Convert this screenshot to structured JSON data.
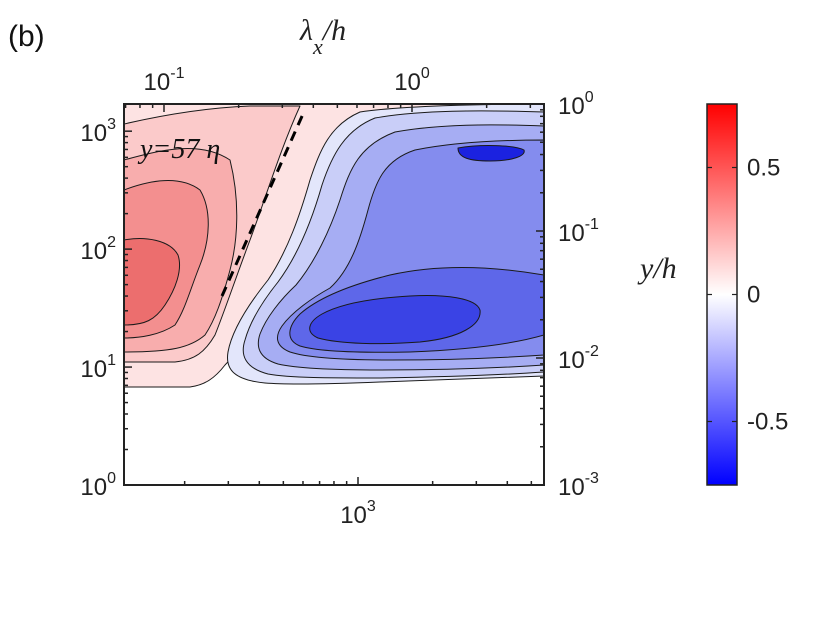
{
  "panel_label": "(b)",
  "chart_data": {
    "type": "contour",
    "title": "",
    "annotation": "y=57 η",
    "top_axis": {
      "label_base": "λ",
      "label_sub": "x",
      "label_tail": "/h",
      "scale": "log",
      "ticks": [
        {
          "base": "10",
          "exp": "-1",
          "value": 0.1
        },
        {
          "base": "10",
          "exp": "0",
          "value": 1
        }
      ]
    },
    "bottom_axis": {
      "label": "",
      "scale": "log",
      "ticks": [
        {
          "base": "10",
          "exp": "3",
          "value": 1000
        }
      ]
    },
    "left_axis": {
      "label": "",
      "scale": "log",
      "range": [
        1,
        1700
      ],
      "ticks": [
        {
          "base": "10",
          "exp": "0",
          "value": 1
        },
        {
          "base": "10",
          "exp": "1",
          "value": 10
        },
        {
          "base": "10",
          "exp": "2",
          "value": 100
        },
        {
          "base": "10",
          "exp": "3",
          "value": 1000
        }
      ]
    },
    "right_axis": {
      "label": "y/h",
      "scale": "log",
      "ticks": [
        {
          "base": "10",
          "exp": "-3",
          "value": 0.001
        },
        {
          "base": "10",
          "exp": "-2",
          "value": 0.01
        },
        {
          "base": "10",
          "exp": "-1",
          "value": 0.1
        },
        {
          "base": "10",
          "exp": "0",
          "value": 1
        }
      ]
    },
    "colorbar": {
      "range": [
        -0.75,
        0.75
      ],
      "ticks": [
        {
          "label": "0.5",
          "value": 0.5
        },
        {
          "label": "0",
          "value": 0
        },
        {
          "label": "-0.5",
          "value": -0.5
        }
      ],
      "colormap": [
        "#0000ff",
        "#ffffff",
        "#ff0000"
      ]
    },
    "positive_region_colors": [
      "#fde3e3",
      "#fbcaca",
      "#f8adad",
      "#f38f8f",
      "#ec6e6e"
    ],
    "negative_region_colors": [
      "#e3e6fb",
      "#c9cef8",
      "#a6adf3",
      "#848cee",
      "#5e67e9",
      "#3a43e5",
      "#1b22e0"
    ],
    "reference_line": {
      "style": "dashed",
      "color": "#000000"
    }
  }
}
